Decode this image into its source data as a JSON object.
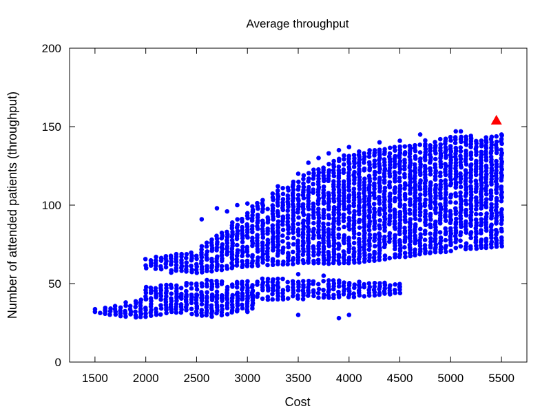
{
  "chart_data": {
    "type": "scatter",
    "title": "Average throughput",
    "xlabel": "Cost",
    "ylabel": "Number of attended patients (throughput)",
    "xlim": [
      1250,
      5750
    ],
    "ylim": [
      0,
      200
    ],
    "xticks": [
      1500,
      2000,
      2500,
      3000,
      3500,
      4000,
      4500,
      5000,
      5500
    ],
    "yticks": [
      0,
      50,
      100,
      150,
      200
    ],
    "grid": false,
    "legend": "none",
    "series": [
      {
        "marker": "circle",
        "color": "#0000ff",
        "cost_step": 50,
        "bands": [
          {
            "x_from": 1500,
            "x_to": 3050,
            "y_lo": [
              32,
              28,
              32,
              29,
              34
            ],
            "y_hi": [
              34,
              40,
              42,
              44,
              44
            ]
          },
          {
            "x_from": 2000,
            "x_to": 4500,
            "y_lo": [
              42,
              41,
              40,
              41,
              44
            ],
            "y_hi": [
              48,
              52,
              53,
              52,
              50
            ]
          },
          {
            "x_from": 2000,
            "x_to": 5500,
            "y_lo": [
              60,
              57,
              61,
              63,
              63,
              67,
              71,
              74
            ],
            "y_hi": [
              66,
              71,
              97,
              118,
              133,
              138,
              144,
              145
            ]
          }
        ],
        "points": [
          [
            1500,
            32
          ],
          [
            1600,
            33
          ],
          [
            3000,
            32
          ],
          [
            3500,
            30
          ],
          [
            3900,
            28
          ],
          [
            4000,
            30
          ],
          [
            2550,
            91
          ],
          [
            2700,
            98
          ],
          [
            2800,
            96
          ],
          [
            2900,
            100
          ],
          [
            3000,
            101
          ],
          [
            3300,
            112
          ],
          [
            3500,
            120
          ],
          [
            3600,
            127
          ],
          [
            3700,
            130
          ],
          [
            3800,
            133
          ],
          [
            3900,
            135
          ],
          [
            4000,
            137
          ],
          [
            4300,
            140
          ],
          [
            4500,
            141
          ],
          [
            4700,
            145
          ],
          [
            5050,
            147
          ],
          [
            5100,
            147
          ],
          [
            5500,
            145
          ],
          [
            4800,
            70
          ],
          [
            5300,
            74
          ],
          [
            5450,
            75
          ],
          [
            2250,
            57
          ],
          [
            3500,
            56
          ],
          [
            3750,
            55
          ],
          [
            4500,
            48
          ],
          [
            4300,
            44
          ],
          [
            4400,
            44
          ],
          [
            2000,
            40
          ],
          [
            2200,
            44
          ]
        ]
      },
      {
        "marker": "triangle",
        "color": "#ff0000",
        "points": [
          [
            5450,
            154
          ]
        ]
      }
    ]
  }
}
